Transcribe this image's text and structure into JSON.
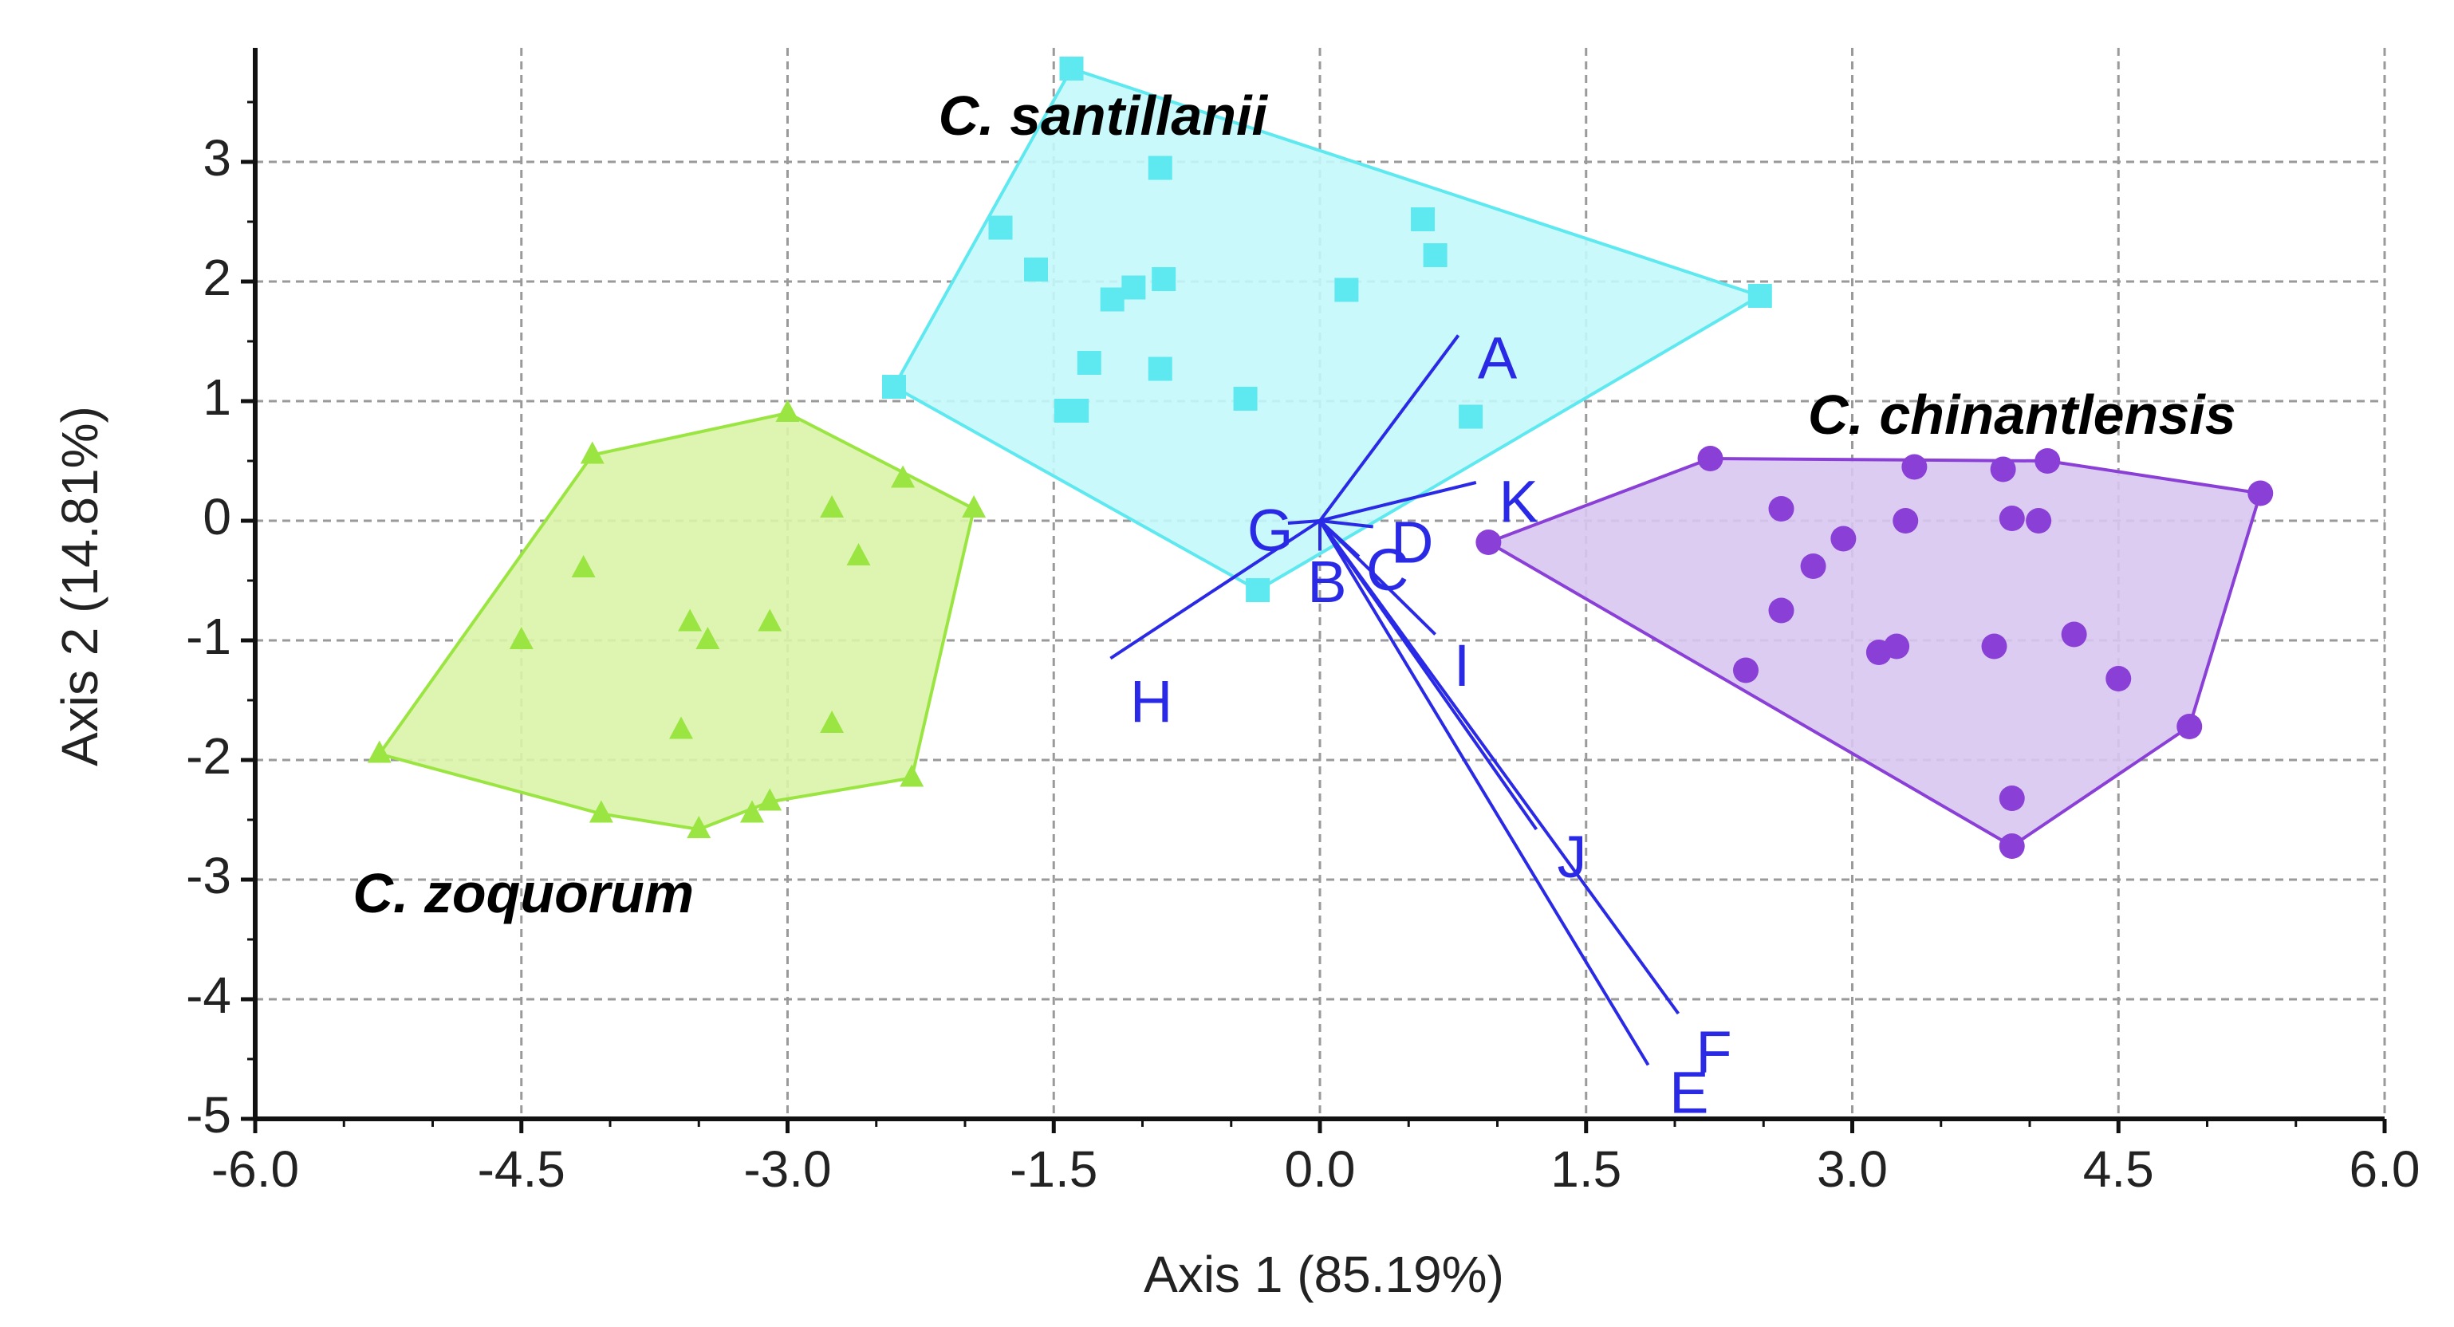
{
  "chart_data": {
    "type": "scatter",
    "xlabel": "Axis 1 (85.19%)",
    "ylabel": "Axis 2 (14.81%)",
    "xlim": [
      -6.0,
      6.0
    ],
    "ylim": [
      -5,
      4
    ],
    "xticks": [
      -6.0,
      -4.5,
      -3.0,
      -1.5,
      0.0,
      1.5,
      3.0,
      4.5,
      6.0
    ],
    "xtick_labels": [
      "-6.0",
      "-4.5",
      "-3.0",
      "-1.5",
      "0.0",
      "1.5",
      "3.0",
      "4.5",
      "6.0"
    ],
    "yticks": [
      -5,
      -4,
      -3,
      -2,
      -1,
      0,
      1,
      2,
      3
    ],
    "ytick_labels": [
      "-5",
      "-4",
      "-3",
      "-2",
      "-1",
      "0",
      "1",
      "2",
      "3"
    ],
    "grid": true,
    "series": [
      {
        "name": "C. santillanii",
        "marker": "square",
        "color": "#5ee8ef",
        "fill": "#c4f8fb",
        "label_pos": [
          -2.15,
          3.35
        ],
        "points": [
          [
            -1.4,
            3.78
          ],
          [
            -0.9,
            2.95
          ],
          [
            -1.8,
            2.45
          ],
          [
            -1.6,
            2.1
          ],
          [
            -1.05,
            1.95
          ],
          [
            -0.88,
            2.02
          ],
          [
            -1.17,
            1.85
          ],
          [
            -1.3,
            1.32
          ],
          [
            -0.9,
            1.27
          ],
          [
            -1.43,
            0.92
          ],
          [
            -1.37,
            0.92
          ],
          [
            -0.42,
            1.02
          ],
          [
            -2.4,
            1.12
          ],
          [
            0.15,
            1.93
          ],
          [
            0.58,
            2.52
          ],
          [
            0.65,
            2.22
          ],
          [
            2.48,
            1.88
          ],
          [
            0.85,
            0.87
          ],
          [
            -0.35,
            -0.58
          ]
        ],
        "hull": [
          [
            -1.4,
            3.78
          ],
          [
            2.48,
            1.88
          ],
          [
            -0.35,
            -0.58
          ],
          [
            -2.4,
            1.12
          ]
        ]
      },
      {
        "name": "C. zoquorum",
        "marker": "triangle",
        "color": "#9be542",
        "fill": "#d9f4a8",
        "label_pos": [
          -5.45,
          -3.15
        ],
        "points": [
          [
            -4.1,
            0.55
          ],
          [
            -3.0,
            0.9
          ],
          [
            -2.35,
            0.35
          ],
          [
            -1.95,
            0.1
          ],
          [
            -2.75,
            0.1
          ],
          [
            -2.6,
            -0.3
          ],
          [
            -4.15,
            -0.4
          ],
          [
            -4.5,
            -1.0
          ],
          [
            -3.55,
            -0.85
          ],
          [
            -3.45,
            -1.0
          ],
          [
            -3.1,
            -0.85
          ],
          [
            -3.6,
            -1.75
          ],
          [
            -2.75,
            -1.7
          ],
          [
            -5.3,
            -1.95
          ],
          [
            -2.3,
            -2.15
          ],
          [
            -4.05,
            -2.45
          ],
          [
            -3.5,
            -2.58
          ],
          [
            -3.2,
            -2.45
          ],
          [
            -3.1,
            -2.35
          ]
        ],
        "hull": [
          [
            -4.1,
            0.55
          ],
          [
            -3.0,
            0.9
          ],
          [
            -1.95,
            0.1
          ],
          [
            -2.3,
            -2.15
          ],
          [
            -3.1,
            -2.35
          ],
          [
            -3.5,
            -2.58
          ],
          [
            -4.05,
            -2.45
          ],
          [
            -5.3,
            -1.95
          ]
        ]
      },
      {
        "name": "C. chinantlensis",
        "marker": "circle",
        "color": "#8a3fd6",
        "fill": "#d8c6f1",
        "label_pos": [
          2.75,
          0.85
        ],
        "points": [
          [
            2.2,
            0.52
          ],
          [
            3.35,
            0.45
          ],
          [
            3.85,
            0.43
          ],
          [
            4.1,
            0.5
          ],
          [
            5.3,
            0.23
          ],
          [
            2.6,
            0.1
          ],
          [
            3.3,
            0.0
          ],
          [
            3.9,
            0.02
          ],
          [
            4.05,
            0.0
          ],
          [
            2.95,
            -0.15
          ],
          [
            2.78,
            -0.38
          ],
          [
            2.6,
            -0.75
          ],
          [
            3.15,
            -1.1
          ],
          [
            3.25,
            -1.05
          ],
          [
            3.8,
            -1.05
          ],
          [
            4.25,
            -0.95
          ],
          [
            2.4,
            -1.25
          ],
          [
            4.5,
            -1.32
          ],
          [
            4.9,
            -1.72
          ],
          [
            3.9,
            -2.32
          ],
          [
            3.9,
            -2.72
          ],
          [
            0.95,
            -0.18
          ]
        ],
        "hull": [
          [
            2.2,
            0.52
          ],
          [
            4.1,
            0.5
          ],
          [
            5.3,
            0.23
          ],
          [
            4.9,
            -1.72
          ],
          [
            3.9,
            -2.72
          ],
          [
            0.95,
            -0.18
          ]
        ]
      }
    ],
    "vectors": {
      "color": "#2a2ae6",
      "items": [
        {
          "label": "A",
          "x": 0.78,
          "y": 1.55,
          "label_x": 1.0,
          "label_y": 1.32
        },
        {
          "label": "K",
          "x": 0.88,
          "y": 0.32,
          "label_x": 1.12,
          "label_y": 0.12
        },
        {
          "label": "G",
          "x": -0.18,
          "y": -0.02,
          "label_x": -0.28,
          "label_y": -0.12
        },
        {
          "label": "D",
          "x": 0.3,
          "y": -0.05,
          "label_x": 0.52,
          "label_y": -0.22
        },
        {
          "label": "B",
          "x": 0.0,
          "y": -0.25,
          "label_x": 0.04,
          "label_y": -0.55
        },
        {
          "label": "C",
          "x": 0.22,
          "y": -0.3,
          "label_x": 0.38,
          "label_y": -0.45
        },
        {
          "label": "I",
          "x": 0.65,
          "y": -0.95,
          "label_x": 0.8,
          "label_y": -1.25
        },
        {
          "label": "H",
          "x": -1.18,
          "y": -1.15,
          "label_x": -0.95,
          "label_y": -1.55
        },
        {
          "label": "J",
          "x": 1.22,
          "y": -2.58,
          "label_x": 1.42,
          "label_y": -2.85
        },
        {
          "label": "F",
          "x": 2.02,
          "y": -4.12,
          "label_x": 2.22,
          "label_y": -4.48
        },
        {
          "label": "E",
          "x": 1.85,
          "y": -4.55,
          "label_x": 2.08,
          "label_y": -4.82
        }
      ]
    }
  }
}
